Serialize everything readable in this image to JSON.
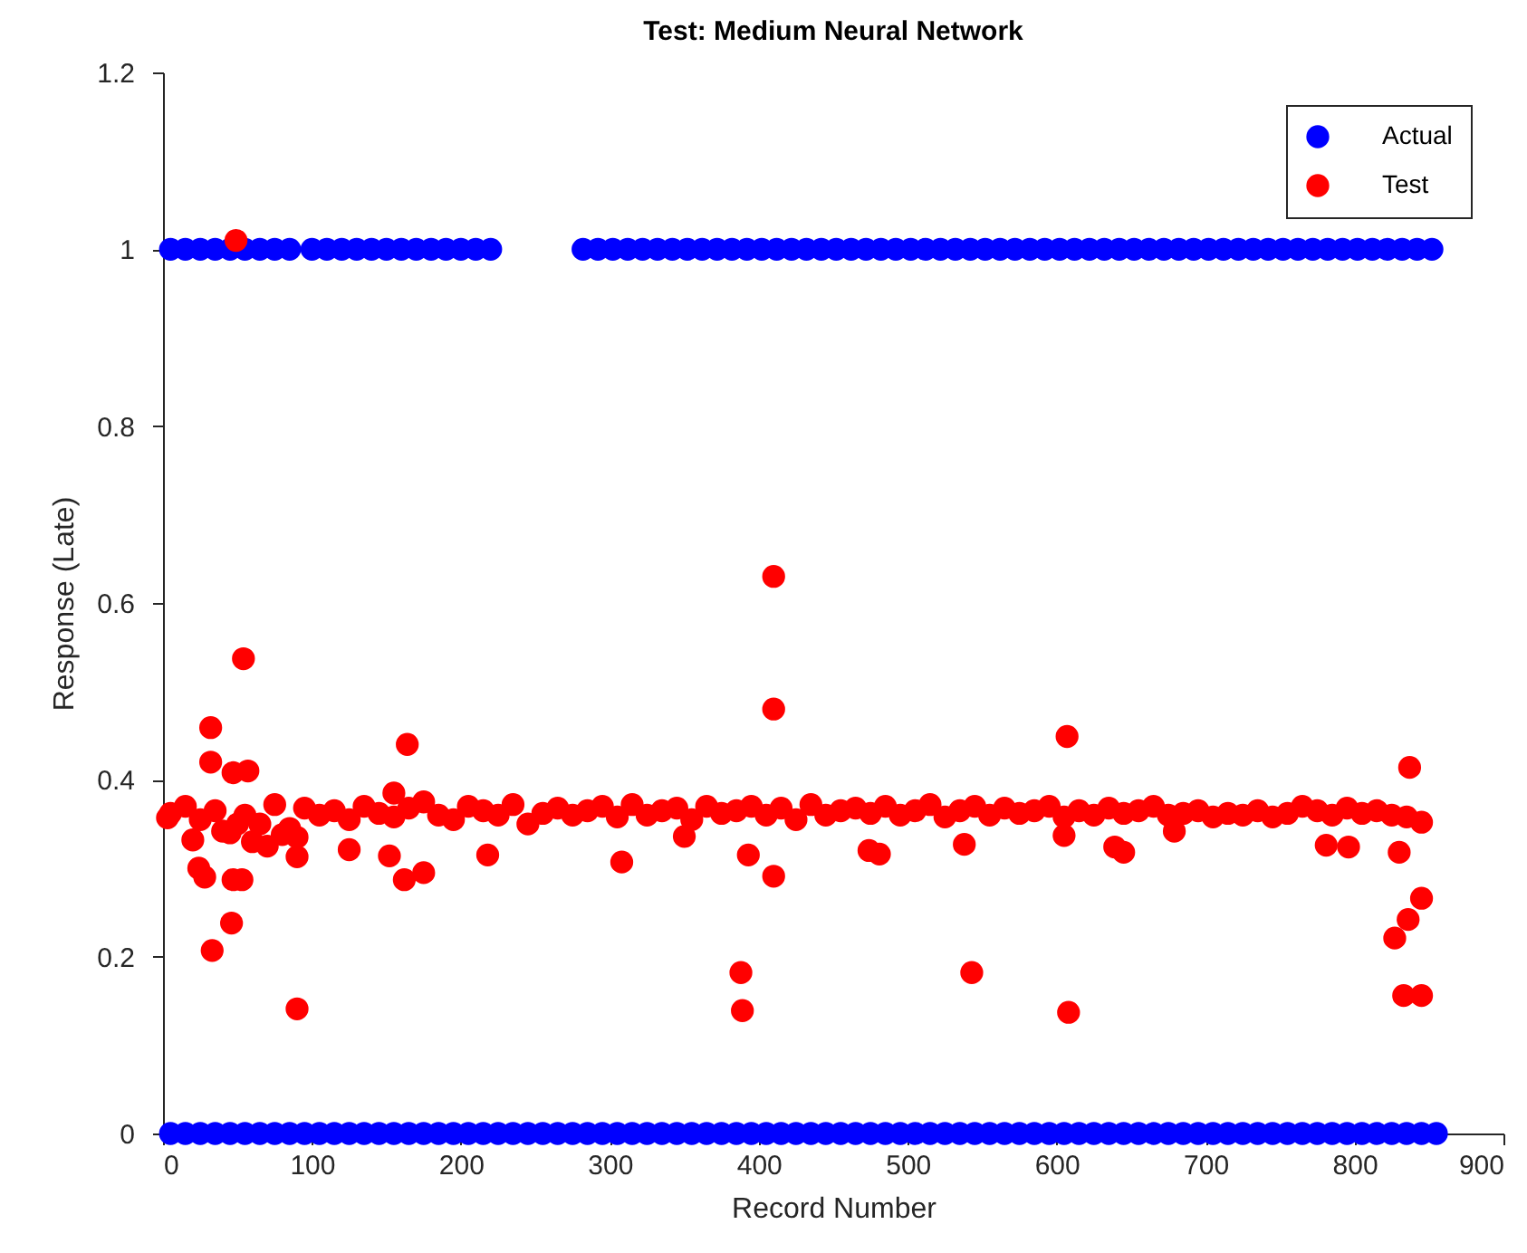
{
  "chart_data": {
    "type": "scatter",
    "title": "Test: Medium Neural Network",
    "xlabel": "Record Number",
    "ylabel": "Response (Late)",
    "xlim": [
      0,
      900
    ],
    "xticks": [
      0,
      100,
      200,
      300,
      400,
      500,
      600,
      700,
      800,
      900
    ],
    "ylim": [
      0,
      1.2
    ],
    "yticks": [
      0,
      0.2,
      0.4,
      0.6,
      0.8,
      1,
      1.2
    ],
    "grid": false,
    "legend": "top right",
    "marker": "circle",
    "series": [
      {
        "name": "Actual",
        "color": "#0000ff",
        "x": [
          5,
          15,
          25,
          35,
          45,
          55,
          65,
          75,
          85,
          100,
          110,
          120,
          130,
          140,
          150,
          160,
          170,
          180,
          190,
          200,
          210,
          220,
          282,
          292,
          302,
          312,
          322,
          332,
          342,
          352,
          362,
          372,
          382,
          392,
          402,
          412,
          422,
          432,
          442,
          452,
          462,
          472,
          482,
          492,
          502,
          512,
          522,
          532,
          542,
          552,
          562,
          572,
          582,
          592,
          602,
          612,
          622,
          632,
          642,
          652,
          662,
          672,
          682,
          692,
          702,
          712,
          722,
          732,
          742,
          752,
          762,
          772,
          782,
          792,
          802,
          812,
          822,
          832,
          842,
          852,
          5,
          15,
          25,
          35,
          45,
          55,
          65,
          75,
          85,
          95,
          105,
          115,
          125,
          135,
          145,
          155,
          165,
          175,
          185,
          195,
          205,
          215,
          225,
          235,
          245,
          255,
          265,
          275,
          285,
          295,
          305,
          315,
          325,
          335,
          345,
          355,
          365,
          375,
          385,
          395,
          405,
          415,
          425,
          435,
          445,
          455,
          465,
          475,
          485,
          495,
          505,
          515,
          525,
          535,
          545,
          555,
          565,
          575,
          585,
          595,
          605,
          615,
          625,
          635,
          645,
          655,
          665,
          675,
          685,
          695,
          705,
          715,
          725,
          735,
          745,
          755,
          765,
          775,
          785,
          795,
          805,
          815,
          825,
          835,
          845,
          855
        ],
        "values": [
          1,
          1,
          1,
          1,
          1,
          1,
          1,
          1,
          1,
          1,
          1,
          1,
          1,
          1,
          1,
          1,
          1,
          1,
          1,
          1,
          1,
          1,
          1,
          1,
          1,
          1,
          1,
          1,
          1,
          1,
          1,
          1,
          1,
          1,
          1,
          1,
          1,
          1,
          1,
          1,
          1,
          1,
          1,
          1,
          1,
          1,
          1,
          1,
          1,
          1,
          1,
          1,
          1,
          1,
          1,
          1,
          1,
          1,
          1,
          1,
          1,
          1,
          1,
          1,
          1,
          1,
          1,
          1,
          1,
          1,
          1,
          1,
          1,
          1,
          1,
          1,
          1,
          1,
          1,
          1,
          0,
          0,
          0,
          0,
          0,
          0,
          0,
          0,
          0,
          0,
          0,
          0,
          0,
          0,
          0,
          0,
          0,
          0,
          0,
          0,
          0,
          0,
          0,
          0,
          0,
          0,
          0,
          0,
          0,
          0,
          0,
          0,
          0,
          0,
          0,
          0,
          0,
          0,
          0,
          0,
          0,
          0,
          0,
          0,
          0,
          0,
          0,
          0,
          0,
          0,
          0,
          0,
          0,
          0,
          0,
          0,
          0,
          0,
          0,
          0,
          0,
          0,
          0,
          0,
          0,
          0,
          0,
          0,
          0,
          0,
          0,
          0,
          0,
          0,
          0,
          0,
          0,
          0,
          0,
          0,
          0,
          0,
          0,
          0,
          0,
          0
        ]
      },
      {
        "name": "Test",
        "color": "#ff0000",
        "x": [
          3,
          5,
          15,
          25,
          35,
          45,
          55,
          65,
          75,
          85,
          95,
          105,
          115,
          125,
          135,
          145,
          155,
          165,
          175,
          185,
          195,
          205,
          215,
          225,
          235,
          245,
          255,
          265,
          275,
          285,
          295,
          305,
          315,
          325,
          335,
          345,
          355,
          365,
          375,
          385,
          395,
          405,
          415,
          425,
          435,
          445,
          455,
          465,
          475,
          485,
          495,
          505,
          515,
          525,
          535,
          545,
          555,
          565,
          575,
          585,
          595,
          605,
          615,
          625,
          635,
          645,
          655,
          665,
          675,
          685,
          695,
          705,
          715,
          725,
          735,
          745,
          755,
          765,
          775,
          785,
          795,
          805,
          815,
          825,
          835,
          845,
          20,
          40,
          60,
          80,
          50,
          70,
          90,
          49,
          54,
          32,
          32,
          47,
          57,
          164,
          410,
          410,
          24,
          28,
          47,
          53,
          90,
          125,
          152,
          162,
          175,
          218,
          308,
          350,
          393,
          410,
          388,
          389,
          33,
          46,
          90,
          607,
          837,
          474,
          481,
          538,
          639,
          645,
          605,
          679,
          781,
          796,
          830,
          845,
          836,
          827,
          833,
          845,
          543,
          608,
          155
        ],
        "values": [
          0.357,
          0.362,
          0.37,
          0.355,
          0.365,
          0.34,
          0.36,
          0.35,
          0.372,
          0.345,
          0.368,
          0.36,
          0.365,
          0.355,
          0.37,
          0.362,
          0.358,
          0.368,
          0.375,
          0.36,
          0.355,
          0.37,
          0.365,
          0.36,
          0.372,
          0.35,
          0.362,
          0.368,
          0.36,
          0.365,
          0.37,
          0.358,
          0.372,
          0.36,
          0.365,
          0.368,
          0.355,
          0.37,
          0.362,
          0.365,
          0.37,
          0.36,
          0.368,
          0.355,
          0.372,
          0.36,
          0.365,
          0.368,
          0.362,
          0.37,
          0.36,
          0.365,
          0.372,
          0.358,
          0.365,
          0.37,
          0.36,
          0.368,
          0.362,
          0.365,
          0.37,
          0.358,
          0.365,
          0.36,
          0.368,
          0.362,
          0.365,
          0.37,
          0.36,
          0.362,
          0.365,
          0.358,
          0.362,
          0.36,
          0.365,
          0.358,
          0.362,
          0.37,
          0.365,
          0.36,
          0.368,
          0.362,
          0.365,
          0.36,
          0.358,
          0.352,
          0.332,
          0.342,
          0.33,
          0.338,
          0.35,
          0.325,
          0.335,
          1.01,
          0.537,
          0.459,
          0.42,
          0.408,
          0.41,
          0.44,
          0.63,
          0.48,
          0.3,
          0.29,
          0.287,
          0.287,
          0.313,
          0.321,
          0.314,
          0.287,
          0.295,
          0.315,
          0.307,
          0.336,
          0.315,
          0.291,
          0.182,
          0.139,
          0.207,
          0.238,
          0.141,
          0.449,
          0.414,
          0.32,
          0.316,
          0.327,
          0.324,
          0.318,
          0.337,
          0.342,
          0.326,
          0.324,
          0.318,
          0.266,
          0.242,
          0.221,
          0.156,
          0.156,
          0.182,
          0.137,
          0.385
        ]
      }
    ]
  }
}
